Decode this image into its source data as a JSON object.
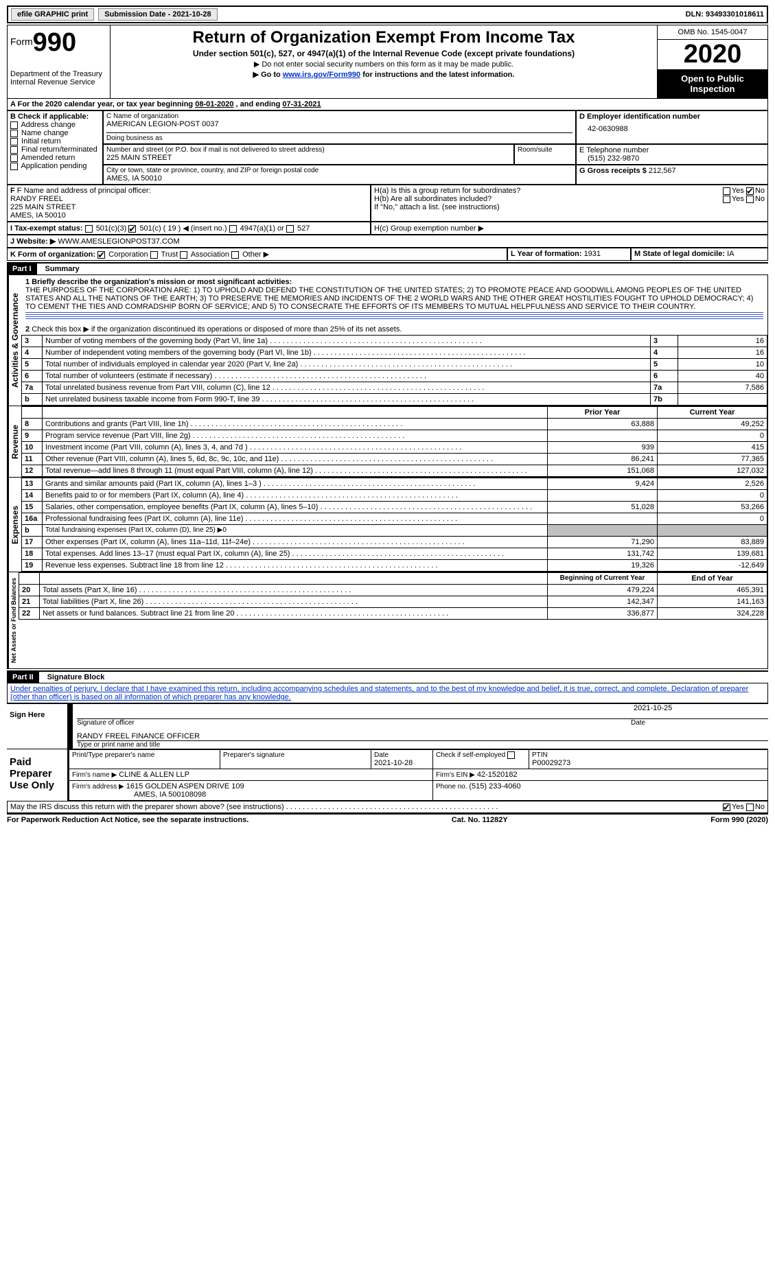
{
  "topbar": {
    "efile": "efile GRAPHIC print",
    "subm_label": "Submission Date - ",
    "subm_date": "2021-10-28",
    "dln_label": "DLN: ",
    "dln": "93493301018611"
  },
  "header": {
    "form_word": "Form",
    "form_num": "990",
    "dept": "Department of the Treasury\nInternal Revenue Service",
    "title": "Return of Organization Exempt From Income Tax",
    "sub": "Under section 501(c), 527, or 4947(a)(1) of the Internal Revenue Code (except private foundations)",
    "note1": "▶ Do not enter social security numbers on this form as it may be made public.",
    "note2_pre": "▶ Go to ",
    "note2_link": "www.irs.gov/Form990",
    "note2_post": " for instructions and the latest information.",
    "omb": "OMB No. 1545-0047",
    "year": "2020",
    "openpub": "Open to Public Inspection"
  },
  "lineA": {
    "text_pre": "For the 2020 calendar year, or tax year beginning ",
    "begin": "08-01-2020",
    "mid": " , and ending ",
    "end": "07-31-2021"
  },
  "boxB": {
    "label": "B Check if applicable:",
    "items": [
      "Address change",
      "Name change",
      "Initial return",
      "Final return/terminated",
      "Amended return",
      "Application pending"
    ]
  },
  "boxC": {
    "name_label": "C Name of organization",
    "name": "AMERICAN LEGION-POST 0037",
    "dba_label": "Doing business as",
    "street_label": "Number and street (or P.O. box if mail is not delivered to street address)",
    "room_label": "Room/suite",
    "street": "225 MAIN STREET",
    "city_label": "City or town, state or province, country, and ZIP or foreign postal code",
    "city": "AMES, IA  50010"
  },
  "boxD": {
    "label": "D Employer identification number",
    "value": "42-0630988"
  },
  "boxE": {
    "label": "E Telephone number",
    "value": "(515) 232-9870"
  },
  "boxG": {
    "label": "G Gross receipts $",
    "value": "212,567"
  },
  "boxF": {
    "label": "F  Name and address of principal officer:",
    "name": "RANDY FREEL",
    "street": "225 MAIN STREET",
    "city": "AMES, IA  50010"
  },
  "boxH": {
    "a": "H(a)  Is this a group return for subordinates?",
    "a_yes": "Yes",
    "a_no": "No",
    "b": "H(b)  Are all subordinates included?",
    "b_yes": "Yes",
    "b_no": "No",
    "b_note": "If \"No,\" attach a list. (see instructions)",
    "c": "H(c)  Group exemption number ▶"
  },
  "lineI": {
    "label": "I  Tax-exempt status:",
    "o1": "501(c)(3)",
    "o2": "501(c) ( 19 ) ◀ (insert no.)",
    "o3": "4947(a)(1) or",
    "o4": "527"
  },
  "lineJ": {
    "label": "J  Website: ▶",
    "value": "WWW.AMESLEGIONPOST37.COM"
  },
  "lineK": {
    "label": "K Form of organization:",
    "opts": [
      "Corporation",
      "Trust",
      "Association",
      "Other ▶"
    ]
  },
  "lineL": {
    "label": "L Year of formation: ",
    "value": "1931"
  },
  "lineM": {
    "label": "M State of legal domicile: ",
    "value": "IA"
  },
  "part1": {
    "tag": "Part I",
    "title": "Summary"
  },
  "mission": {
    "q": "1  Briefly describe the organization's mission or most significant activities:",
    "text": "THE PURPOSES OF THE CORPORATION ARE: 1) TO UPHOLD AND DEFEND THE CONSTITUTION OF THE UNITED STATES; 2) TO PROMOTE PEACE AND GOODWILL AMONG PEOPLES OF THE UNITED STATES AND ALL THE NATIONS OF THE EARTH; 3) TO PRESERVE THE MEMORIES AND INCIDENTS OF THE 2 WORLD WARS AND THE OTHER GREAT HOSTILITIES FOUGHT TO UPHOLD DEMOCRACY; 4) TO CEMENT THE TIES AND COMRADSHIP BORN OF SERVICE; AND 5) TO CONSECRATE THE EFFORTS OF ITS MEMBERS TO MUTUAL HELPFULNESS AND SERVICE TO THEIR COUNTRY."
  },
  "gov": {
    "l2": "Check this box ▶        if the organization discontinued its operations or disposed of more than 25% of its net assets.",
    "rows": [
      {
        "n": "3",
        "t": "Number of voting members of the governing body (Part VI, line 1a)",
        "v": "16"
      },
      {
        "n": "4",
        "t": "Number of independent voting members of the governing body (Part VI, line 1b)",
        "v": "16"
      },
      {
        "n": "5",
        "t": "Total number of individuals employed in calendar year 2020 (Part V, line 2a)",
        "v": "10"
      },
      {
        "n": "6",
        "t": "Total number of volunteers (estimate if necessary)",
        "v": "40"
      },
      {
        "n": "7a",
        "t": "Total unrelated business revenue from Part VIII, column (C), line 12",
        "v": "7,586"
      },
      {
        "n": "b",
        "t": "Net unrelated business taxable income from Form 990-T, line 39",
        "v": ""
      }
    ],
    "ncol": [
      "3",
      "4",
      "5",
      "6",
      "7a",
      "7b"
    ]
  },
  "rev": {
    "hdr_prior": "Prior Year",
    "hdr_curr": "Current Year",
    "rows": [
      {
        "n": "8",
        "t": "Contributions and grants (Part VIII, line 1h)",
        "p": "63,888",
        "c": "49,252"
      },
      {
        "n": "9",
        "t": "Program service revenue (Part VIII, line 2g)",
        "p": "",
        "c": "0"
      },
      {
        "n": "10",
        "t": "Investment income (Part VIII, column (A), lines 3, 4, and 7d )",
        "p": "939",
        "c": "415"
      },
      {
        "n": "11",
        "t": "Other revenue (Part VIII, column (A), lines 5, 6d, 8c, 9c, 10c, and 11e)",
        "p": "86,241",
        "c": "77,365"
      },
      {
        "n": "12",
        "t": "Total revenue—add lines 8 through 11 (must equal Part VIII, column (A), line 12)",
        "p": "151,068",
        "c": "127,032"
      }
    ]
  },
  "exp": {
    "rows": [
      {
        "n": "13",
        "t": "Grants and similar amounts paid (Part IX, column (A), lines 1–3 )",
        "p": "9,424",
        "c": "2,526"
      },
      {
        "n": "14",
        "t": "Benefits paid to or for members (Part IX, column (A), line 4)",
        "p": "",
        "c": "0"
      },
      {
        "n": "15",
        "t": "Salaries, other compensation, employee benefits (Part IX, column (A), lines 5–10)",
        "p": "51,028",
        "c": "53,266"
      },
      {
        "n": "16a",
        "t": "Professional fundraising fees (Part IX, column (A), line 11e)",
        "p": "",
        "c": "0"
      },
      {
        "n": "b",
        "t": "Total fundraising expenses (Part IX, column (D), line 25) ▶0",
        "p": "SHADE",
        "c": "SHADE"
      },
      {
        "n": "17",
        "t": "Other expenses (Part IX, column (A), lines 11a–11d, 11f–24e)",
        "p": "71,290",
        "c": "83,889"
      },
      {
        "n": "18",
        "t": "Total expenses. Add lines 13–17 (must equal Part IX, column (A), line 25)",
        "p": "131,742",
        "c": "139,681"
      },
      {
        "n": "19",
        "t": "Revenue less expenses. Subtract line 18 from line 12",
        "p": "19,326",
        "c": "-12,649"
      }
    ]
  },
  "net": {
    "hdr_beg": "Beginning of Current Year",
    "hdr_end": "End of Year",
    "rows": [
      {
        "n": "20",
        "t": "Total assets (Part X, line 16)",
        "p": "479,224",
        "c": "465,391"
      },
      {
        "n": "21",
        "t": "Total liabilities (Part X, line 26)",
        "p": "142,347",
        "c": "141,163"
      },
      {
        "n": "22",
        "t": "Net assets or fund balances. Subtract line 21 from line 20",
        "p": "336,877",
        "c": "324,228"
      }
    ]
  },
  "part2": {
    "tag": "Part II",
    "title": "Signature Block"
  },
  "sig": {
    "penalty": "Under penalties of perjury, I declare that I have examined this return, including accompanying schedules and statements, and to the best of my knowledge and belief, it is true, correct, and complete. Declaration of preparer (other than officer) is based on all information of which preparer has any knowledge.",
    "sign_here": "Sign Here",
    "sig_officer": "Signature of officer",
    "date": "Date",
    "sig_date": "2021-10-25",
    "name_title": "RANDY FREEL FINANCE OFFICER",
    "name_lbl": "Type or print name and title",
    "paid": "Paid Preparer Use Only",
    "p_name_lbl": "Print/Type preparer's name",
    "p_sig_lbl": "Preparer's signature",
    "p_date_lbl": "Date",
    "p_date": "2021-10-28",
    "p_self": "Check         if self-employed",
    "ptin_lbl": "PTIN",
    "ptin": "P00029273",
    "firm_name_lbl": "Firm's name    ▶",
    "firm_name": "CLINE & ALLEN LLP",
    "firm_ein_lbl": "Firm's EIN ▶",
    "firm_ein": "42-1520182",
    "firm_addr_lbl": "Firm's address ▶",
    "firm_addr1": "1615 GOLDEN ASPEN DRIVE 109",
    "firm_addr2": "AMES, IA  500108098",
    "phone_lbl": "Phone no. ",
    "phone": "(515) 233-4060",
    "may": "May the IRS discuss this return with the preparer shown above? (see instructions)",
    "yes": "Yes",
    "no": "No"
  },
  "footer": {
    "left": "For Paperwork Reduction Act Notice, see the separate instructions.",
    "mid": "Cat. No. 11282Y",
    "right": "Form 990 (2020)"
  },
  "vlabels": {
    "gov": "Activities & Governance",
    "rev": "Revenue",
    "exp": "Expenses",
    "net": "Net Assets or Fund Balances"
  }
}
